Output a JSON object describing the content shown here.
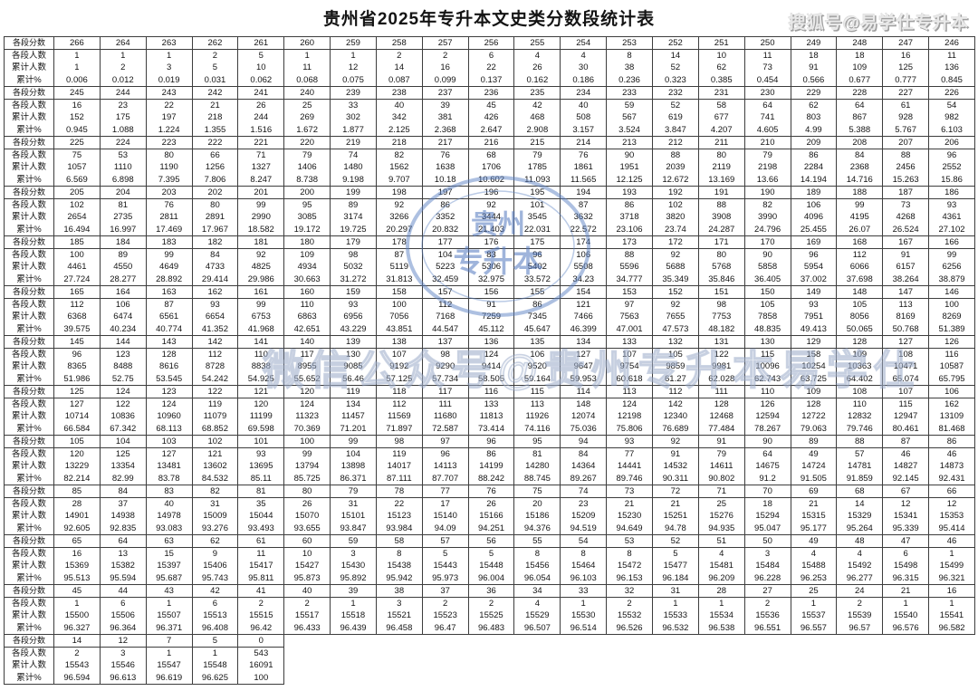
{
  "title": "贵州省2025年专升本文史类分数段统计表",
  "top_right_watermark": "搜狐号@易学仕专升本",
  "center_watermark": "微信公众号@贵州专升本易学仕",
  "stamp": {
    "line1": "贵州",
    "line2": "专升本"
  },
  "row_labels": {
    "score": "各段分数",
    "count": "各段人数",
    "cumulative": "累计人数",
    "percent": "累计%"
  },
  "total_candidates": 16091,
  "colors": {
    "border": "#3d3d3d",
    "stamp_blue": "#5c82c4",
    "watermark_gray": "#c9c9c9"
  },
  "groups": [
    {
      "scores": [
        266,
        264,
        263,
        262,
        261,
        260,
        259,
        258,
        257,
        256,
        255,
        254,
        253,
        252,
        251,
        250,
        249,
        248,
        247,
        246
      ],
      "counts": [
        1,
        1,
        1,
        2,
        5,
        1,
        1,
        2,
        2,
        6,
        4,
        4,
        8,
        14,
        10,
        11,
        18,
        18,
        16,
        11
      ],
      "cumulative": [
        1,
        2,
        3,
        5,
        10,
        11,
        12,
        14,
        16,
        22,
        26,
        30,
        38,
        52,
        62,
        73,
        91,
        109,
        125,
        136
      ],
      "percents": [
        "0.006",
        "0.012",
        "0.019",
        "0.031",
        "0.062",
        "0.068",
        "0.075",
        "0.087",
        "0.099",
        "0.137",
        "0.162",
        "0.186",
        "0.236",
        "0.323",
        "0.385",
        "0.454",
        "0.566",
        "0.677",
        "0.777",
        "0.845"
      ]
    },
    {
      "scores": [
        245,
        244,
        243,
        242,
        241,
        240,
        239,
        238,
        237,
        236,
        235,
        234,
        233,
        232,
        231,
        230,
        229,
        228,
        227,
        226
      ],
      "counts": [
        16,
        23,
        22,
        21,
        26,
        25,
        33,
        40,
        39,
        45,
        42,
        40,
        59,
        52,
        58,
        64,
        62,
        64,
        61,
        54
      ],
      "cumulative": [
        152,
        175,
        197,
        218,
        244,
        269,
        302,
        342,
        381,
        426,
        468,
        508,
        567,
        619,
        677,
        741,
        803,
        867,
        928,
        982
      ],
      "percents": [
        "0.945",
        "1.088",
        "1.224",
        "1.355",
        "1.516",
        "1.672",
        "1.877",
        "2.125",
        "2.368",
        "2.647",
        "2.908",
        "3.157",
        "3.524",
        "3.847",
        "4.207",
        "4.605",
        "4.99",
        "5.388",
        "5.767",
        "6.103"
      ]
    },
    {
      "scores": [
        225,
        224,
        223,
        222,
        221,
        220,
        219,
        218,
        217,
        216,
        215,
        214,
        213,
        212,
        211,
        210,
        209,
        208,
        207,
        206
      ],
      "counts": [
        75,
        53,
        80,
        66,
        71,
        79,
        74,
        82,
        76,
        68,
        79,
        76,
        90,
        88,
        80,
        79,
        86,
        84,
        88,
        96
      ],
      "cumulative": [
        1057,
        1110,
        1190,
        1256,
        1327,
        1406,
        1480,
        1562,
        1638,
        1706,
        1785,
        1861,
        1951,
        2039,
        2119,
        2198,
        2284,
        2368,
        2456,
        2552
      ],
      "percents": [
        "6.569",
        "6.898",
        "7.395",
        "7.806",
        "8.247",
        "8.738",
        "9.198",
        "9.707",
        "10.18",
        "10.602",
        "11.093",
        "11.565",
        "12.125",
        "12.672",
        "13.169",
        "13.66",
        "14.194",
        "14.716",
        "15.263",
        "15.86"
      ]
    },
    {
      "scores": [
        205,
        204,
        203,
        202,
        201,
        200,
        199,
        198,
        197,
        196,
        195,
        194,
        193,
        192,
        191,
        190,
        189,
        188,
        187,
        186
      ],
      "counts": [
        102,
        81,
        76,
        80,
        99,
        95,
        89,
        92,
        86,
        92,
        101,
        87,
        86,
        102,
        88,
        82,
        106,
        99,
        73,
        93
      ],
      "cumulative": [
        2654,
        2735,
        2811,
        2891,
        2990,
        3085,
        3174,
        3266,
        3352,
        3444,
        3545,
        3632,
        3718,
        3820,
        3908,
        3990,
        4096,
        4195,
        4268,
        4361
      ],
      "percents": [
        "16.494",
        "16.997",
        "17.469",
        "17.967",
        "18.582",
        "19.172",
        "19.725",
        "20.297",
        "20.832",
        "21.403",
        "22.031",
        "22.572",
        "23.106",
        "23.74",
        "24.287",
        "24.796",
        "25.455",
        "26.07",
        "26.524",
        "27.102"
      ]
    },
    {
      "scores": [
        185,
        184,
        183,
        182,
        181,
        180,
        179,
        178,
        177,
        176,
        175,
        174,
        173,
        172,
        171,
        170,
        169,
        168,
        167,
        166
      ],
      "counts": [
        100,
        89,
        99,
        84,
        92,
        109,
        98,
        87,
        104,
        83,
        96,
        106,
        88,
        92,
        80,
        90,
        96,
        112,
        91,
        99
      ],
      "cumulative": [
        4461,
        4550,
        4649,
        4733,
        4825,
        4934,
        5032,
        5119,
        5223,
        5306,
        5402,
        5508,
        5596,
        5688,
        5768,
        5858,
        5954,
        6066,
        6157,
        6256
      ],
      "percents": [
        "27.724",
        "28.277",
        "28.892",
        "29.414",
        "29.986",
        "30.663",
        "31.272",
        "31.813",
        "32.459",
        "32.975",
        "33.572",
        "34.23",
        "34.777",
        "35.349",
        "35.846",
        "36.405",
        "37.002",
        "37.698",
        "38.264",
        "38.879"
      ]
    },
    {
      "scores": [
        165,
        164,
        163,
        162,
        161,
        160,
        159,
        158,
        157,
        156,
        155,
        154,
        153,
        152,
        151,
        150,
        149,
        148,
        147,
        146
      ],
      "counts": [
        112,
        106,
        87,
        93,
        99,
        110,
        93,
        100,
        112,
        91,
        86,
        121,
        97,
        92,
        98,
        105,
        93,
        105,
        113,
        100
      ],
      "cumulative": [
        6368,
        6474,
        6561,
        6654,
        6753,
        6863,
        6956,
        7056,
        7168,
        7259,
        7345,
        7466,
        7563,
        7655,
        7753,
        7858,
        7951,
        8056,
        8169,
        8269
      ],
      "percents": [
        "39.575",
        "40.234",
        "40.774",
        "41.352",
        "41.968",
        "42.651",
        "43.229",
        "43.851",
        "44.547",
        "45.112",
        "45.647",
        "46.399",
        "47.001",
        "47.573",
        "48.182",
        "48.835",
        "49.413",
        "50.065",
        "50.768",
        "51.389"
      ]
    },
    {
      "scores": [
        145,
        144,
        143,
        142,
        141,
        140,
        139,
        138,
        137,
        136,
        135,
        134,
        133,
        132,
        131,
        130,
        129,
        128,
        127,
        126
      ],
      "counts": [
        96,
        123,
        128,
        112,
        110,
        117,
        130,
        107,
        98,
        124,
        106,
        127,
        107,
        105,
        122,
        115,
        158,
        109,
        108,
        116
      ],
      "cumulative": [
        8365,
        8488,
        8616,
        8728,
        8838,
        8955,
        9085,
        9192,
        9290,
        9414,
        9520,
        9647,
        9754,
        9859,
        9981,
        10096,
        10254,
        10363,
        10471,
        10587
      ],
      "percents": [
        "51.986",
        "52.75",
        "53.545",
        "54.242",
        "54.925",
        "55.652",
        "56.46",
        "57.125",
        "57.734",
        "58.505",
        "59.164",
        "59.953",
        "60.618",
        "61.27",
        "62.028",
        "62.743",
        "63.725",
        "64.402",
        "65.074",
        "65.795"
      ]
    },
    {
      "scores": [
        125,
        124,
        123,
        122,
        121,
        120,
        119,
        118,
        117,
        116,
        115,
        114,
        113,
        112,
        111,
        110,
        109,
        108,
        107,
        106
      ],
      "counts": [
        127,
        122,
        124,
        119,
        120,
        124,
        134,
        112,
        111,
        133,
        113,
        148,
        124,
        142,
        128,
        126,
        128,
        110,
        115,
        162
      ],
      "cumulative": [
        10714,
        10836,
        10960,
        11079,
        11199,
        11323,
        11457,
        11569,
        11680,
        11813,
        11926,
        12074,
        12198,
        12340,
        12468,
        12594,
        12722,
        12832,
        12947,
        13109
      ],
      "percents": [
        "66.584",
        "67.342",
        "68.113",
        "68.852",
        "69.598",
        "70.369",
        "71.201",
        "71.897",
        "72.587",
        "73.414",
        "74.116",
        "75.036",
        "75.806",
        "76.689",
        "77.484",
        "78.267",
        "79.063",
        "79.746",
        "80.461",
        "81.468"
      ]
    },
    {
      "scores": [
        105,
        104,
        103,
        102,
        101,
        100,
        99,
        98,
        97,
        96,
        95,
        94,
        93,
        92,
        91,
        90,
        89,
        88,
        87,
        86
      ],
      "counts": [
        120,
        125,
        127,
        121,
        93,
        99,
        104,
        119,
        96,
        86,
        81,
        84,
        77,
        91,
        79,
        64,
        49,
        57,
        46,
        46
      ],
      "cumulative": [
        13229,
        13354,
        13481,
        13602,
        13695,
        13794,
        13898,
        14017,
        14113,
        14199,
        14280,
        14364,
        14441,
        14532,
        14611,
        14675,
        14724,
        14781,
        14827,
        14873
      ],
      "percents": [
        "82.214",
        "82.99",
        "83.78",
        "84.532",
        "85.11",
        "85.725",
        "86.371",
        "87.111",
        "87.707",
        "88.242",
        "88.745",
        "89.267",
        "89.746",
        "90.311",
        "90.802",
        "91.2",
        "91.505",
        "91.859",
        "92.145",
        "92.431"
      ]
    },
    {
      "scores": [
        85,
        84,
        83,
        82,
        81,
        80,
        79,
        78,
        77,
        76,
        75,
        74,
        73,
        72,
        71,
        70,
        69,
        68,
        67,
        66
      ],
      "counts": [
        28,
        37,
        40,
        31,
        35,
        26,
        31,
        22,
        17,
        26,
        20,
        23,
        21,
        21,
        25,
        18,
        21,
        14,
        12,
        12
      ],
      "cumulative": [
        14901,
        14938,
        14978,
        15009,
        15044,
        15070,
        15101,
        15123,
        15140,
        15166,
        15186,
        15209,
        15230,
        15251,
        15276,
        15294,
        15315,
        15329,
        15341,
        15353
      ],
      "percents": [
        "92.605",
        "92.835",
        "93.083",
        "93.276",
        "93.493",
        "93.655",
        "93.847",
        "93.984",
        "94.09",
        "94.251",
        "94.376",
        "94.519",
        "94.649",
        "94.78",
        "94.935",
        "95.047",
        "95.177",
        "95.264",
        "95.339",
        "95.414"
      ]
    },
    {
      "scores": [
        65,
        64,
        63,
        62,
        61,
        60,
        59,
        58,
        57,
        56,
        55,
        54,
        53,
        52,
        51,
        50,
        49,
        48,
        47,
        46
      ],
      "counts": [
        16,
        13,
        15,
        9,
        11,
        10,
        3,
        8,
        5,
        5,
        8,
        8,
        8,
        5,
        4,
        3,
        4,
        4,
        6,
        1
      ],
      "cumulative": [
        15369,
        15382,
        15397,
        15406,
        15417,
        15427,
        15430,
        15438,
        15443,
        15448,
        15456,
        15464,
        15472,
        15477,
        15481,
        15484,
        15488,
        15492,
        15498,
        15499
      ],
      "percents": [
        "95.513",
        "95.594",
        "95.687",
        "95.743",
        "95.811",
        "95.873",
        "95.892",
        "95.942",
        "95.973",
        "96.004",
        "96.054",
        "96.103",
        "96.153",
        "96.184",
        "96.209",
        "96.228",
        "96.253",
        "96.277",
        "96.315",
        "96.321"
      ]
    },
    {
      "scores": [
        45,
        44,
        43,
        42,
        41,
        40,
        39,
        38,
        37,
        36,
        34,
        33,
        32,
        31,
        28,
        27,
        25,
        24,
        21,
        16
      ],
      "counts": [
        1,
        6,
        1,
        6,
        2,
        2,
        1,
        3,
        2,
        2,
        4,
        1,
        2,
        1,
        1,
        2,
        1,
        2,
        1,
        1
      ],
      "cumulative": [
        15500,
        15506,
        15507,
        15513,
        15515,
        15517,
        15518,
        15521,
        15523,
        15525,
        15529,
        15530,
        15532,
        15533,
        15534,
        15536,
        15537,
        15539,
        15540,
        15541
      ],
      "percents": [
        "96.327",
        "96.364",
        "96.371",
        "96.408",
        "96.42",
        "96.433",
        "96.439",
        "96.458",
        "96.47",
        "96.483",
        "96.507",
        "96.514",
        "96.526",
        "96.532",
        "96.538",
        "96.551",
        "96.557",
        "96.57",
        "96.576",
        "96.582"
      ]
    },
    {
      "scores": [
        14,
        12,
        7,
        5,
        0
      ],
      "counts": [
        2,
        3,
        1,
        1,
        543
      ],
      "cumulative": [
        15543,
        15546,
        15547,
        15548,
        16091
      ],
      "percents": [
        "96.594",
        "96.613",
        "96.619",
        "96.625",
        "100"
      ]
    }
  ]
}
